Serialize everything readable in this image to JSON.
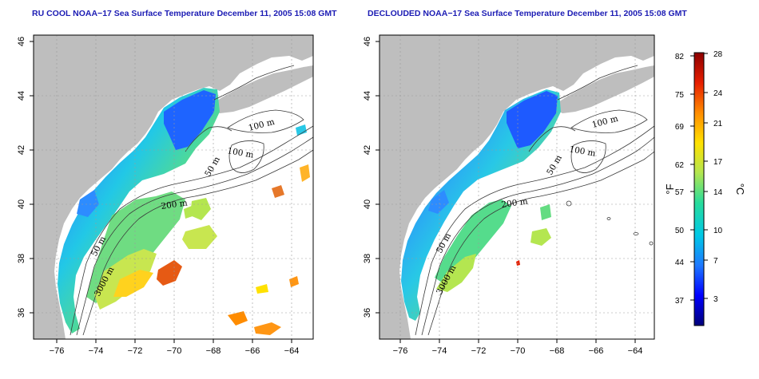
{
  "panels": [
    {
      "title": "RU COOL NOAA−17 Sea Surface Temperature December 11, 2005 15:08 GMT",
      "contour_labels": [
        "100 m",
        "100 m",
        "50 m",
        "200 m",
        "50 m",
        "3000 m"
      ]
    },
    {
      "title": "DECLOUDED NOAA−17 Sea Surface Temperature December 11, 2005 15:08 GMT",
      "contour_labels": [
        "100 m",
        "100 m",
        "50 m",
        "200 m",
        "50 m",
        "3000 m"
      ]
    }
  ],
  "axes": {
    "lon_ticks": [
      "−76",
      "−74",
      "−72",
      "−70",
      "−68",
      "−66",
      "−64"
    ],
    "lat_ticks": [
      "36",
      "38",
      "40",
      "42",
      "44",
      "46"
    ]
  },
  "colorbar": {
    "fahrenheit_ticks": [
      "82",
      "75",
      "69",
      "62",
      "57",
      "50",
      "44",
      "37"
    ],
    "celsius_ticks": [
      "28",
      "24",
      "21",
      "17",
      "14",
      "10",
      "7",
      "3"
    ],
    "fahrenheit_unit": "°F",
    "celsius_unit": "°C",
    "colors": [
      "#00007a",
      "#0000ff",
      "#1e78ff",
      "#00c8e6",
      "#28dc9b",
      "#b4e650",
      "#ffe100",
      "#ff8c00",
      "#e61e00",
      "#8c0000"
    ]
  },
  "colors": {
    "land": "#bebebe",
    "water_mask": "#ffffff",
    "title": "#1c1cb4"
  }
}
